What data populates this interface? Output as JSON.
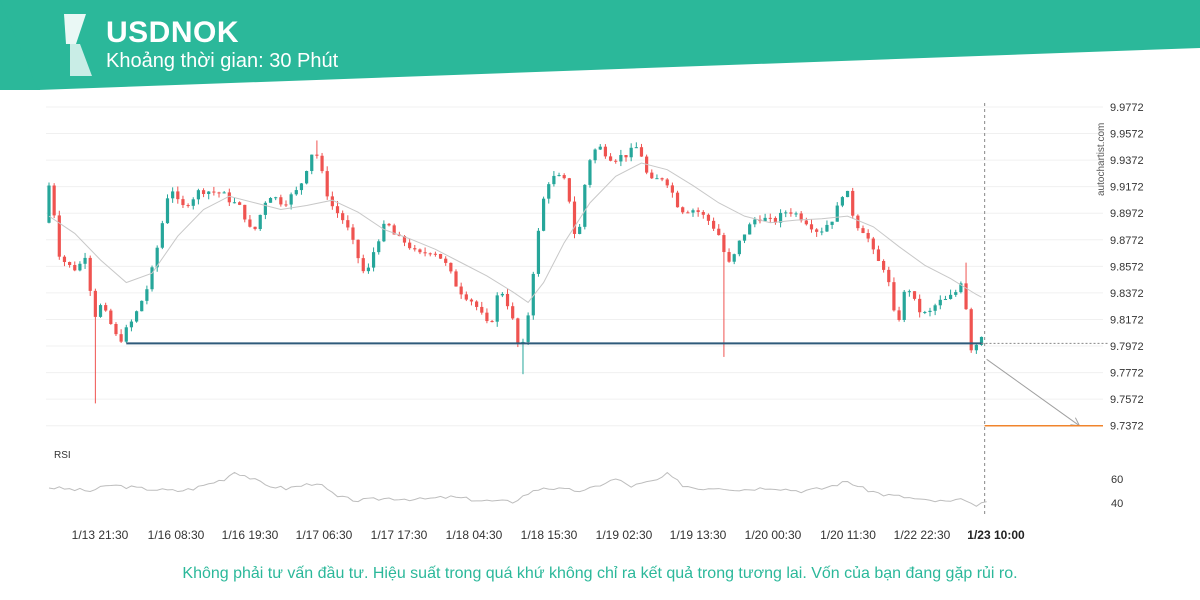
{
  "header": {
    "symbol": "USDNOK",
    "interval_label": "Khoảng thời gian: 30 Phút",
    "brand_color": "#2bb89a"
  },
  "watermark": "autochartist.com",
  "disclaimer": "Không phải tư vấn đầu tư. Hiệu suất trong quá khứ không chỉ ra kết quả trong tương lai. Vốn của bạn đang gặp rủi ro.",
  "chart_data": {
    "type": "candlestick",
    "x_tick_labels": [
      "1/13 21:30",
      "1/16 08:30",
      "1/16 19:30",
      "1/17 06:30",
      "1/17 17:30",
      "1/18 04:30",
      "1/18 15:30",
      "1/19 02:30",
      "1/19 13:30",
      "1/20 00:30",
      "1/20 11:30",
      "1/22 22:30",
      "1/23 10:00"
    ],
    "highlighted_x_label": "1/23 10:00",
    "y_ticks": [
      9.9772,
      9.9572,
      9.9372,
      9.9172,
      9.8972,
      9.8772,
      9.8572,
      9.8372,
      9.8172,
      9.7972,
      9.7772,
      9.7572,
      9.7372
    ],
    "ylim": [
      9.7302,
      9.9802
    ],
    "price_path": [
      [
        0,
        9.89
      ],
      [
        0.8,
        9.935
      ],
      [
        2,
        9.87
      ],
      [
        4,
        9.858
      ],
      [
        6,
        9.855
      ],
      [
        8,
        9.87
      ],
      [
        9,
        9.812
      ],
      [
        10,
        9.83
      ],
      [
        12,
        9.818
      ],
      [
        14,
        9.8
      ],
      [
        17,
        9.818
      ],
      [
        20,
        9.845
      ],
      [
        22,
        9.88
      ],
      [
        24,
        9.92
      ],
      [
        26,
        9.9
      ],
      [
        30,
        9.915
      ],
      [
        34,
        9.912
      ],
      [
        38,
        9.9
      ],
      [
        40,
        9.88
      ],
      [
        43,
        9.912
      ],
      [
        46,
        9.905
      ],
      [
        49,
        9.915
      ],
      [
        52,
        9.948
      ],
      [
        55,
        9.905
      ],
      [
        58,
        9.89
      ],
      [
        62,
        9.848
      ],
      [
        64,
        9.875
      ],
      [
        66,
        9.89
      ],
      [
        68,
        9.878
      ],
      [
        70,
        9.875
      ],
      [
        72,
        9.865
      ],
      [
        75,
        9.87
      ],
      [
        77,
        9.862
      ],
      [
        80,
        9.84
      ],
      [
        83,
        9.83
      ],
      [
        86,
        9.81
      ],
      [
        88,
        9.842
      ],
      [
        90,
        9.825
      ],
      [
        92,
        9.79
      ],
      [
        93,
        9.805
      ],
      [
        95,
        9.87
      ],
      [
        97,
        9.92
      ],
      [
        99,
        9.925
      ],
      [
        101,
        9.92
      ],
      [
        103,
        9.87
      ],
      [
        105,
        9.935
      ],
      [
        107,
        9.948
      ],
      [
        110,
        9.938
      ],
      [
        113,
        9.942
      ],
      [
        115,
        9.948
      ],
      [
        117,
        9.92
      ],
      [
        120,
        9.925
      ],
      [
        123,
        9.9
      ],
      [
        126,
        9.9
      ],
      [
        129,
        9.89
      ],
      [
        131,
        9.878
      ],
      [
        132,
        9.858
      ],
      [
        133,
        9.86
      ],
      [
        135,
        9.88
      ],
      [
        138,
        9.895
      ],
      [
        141,
        9.89
      ],
      [
        144,
        9.9
      ],
      [
        147,
        9.893
      ],
      [
        150,
        9.883
      ],
      [
        153,
        9.895
      ],
      [
        155,
        9.918
      ],
      [
        157,
        9.89
      ],
      [
        159,
        9.883
      ],
      [
        161,
        9.862
      ],
      [
        163,
        9.855
      ],
      [
        165,
        9.81
      ],
      [
        167,
        9.845
      ],
      [
        169,
        9.825
      ],
      [
        171,
        9.82
      ],
      [
        173,
        9.83
      ],
      [
        175,
        9.832
      ],
      [
        177,
        9.84
      ],
      [
        178,
        9.853
      ],
      [
        179,
        9.8
      ],
      [
        180,
        9.792
      ],
      [
        181,
        9.806
      ]
    ],
    "moving_average": [
      [
        0,
        9.895
      ],
      [
        5,
        9.882
      ],
      [
        10,
        9.862
      ],
      [
        15,
        9.845
      ],
      [
        20,
        9.852
      ],
      [
        25,
        9.88
      ],
      [
        30,
        9.9
      ],
      [
        35,
        9.91
      ],
      [
        40,
        9.905
      ],
      [
        45,
        9.9
      ],
      [
        50,
        9.903
      ],
      [
        55,
        9.907
      ],
      [
        60,
        9.898
      ],
      [
        65,
        9.885
      ],
      [
        70,
        9.878
      ],
      [
        75,
        9.87
      ],
      [
        80,
        9.86
      ],
      [
        85,
        9.85
      ],
      [
        90,
        9.838
      ],
      [
        93,
        9.83
      ],
      [
        96,
        9.845
      ],
      [
        100,
        9.875
      ],
      [
        105,
        9.905
      ],
      [
        110,
        9.925
      ],
      [
        115,
        9.935
      ],
      [
        120,
        9.93
      ],
      [
        125,
        9.918
      ],
      [
        130,
        9.905
      ],
      [
        135,
        9.895
      ],
      [
        140,
        9.89
      ],
      [
        145,
        9.892
      ],
      [
        150,
        9.893
      ],
      [
        155,
        9.895
      ],
      [
        160,
        9.887
      ],
      [
        165,
        9.872
      ],
      [
        170,
        9.858
      ],
      [
        175,
        9.848
      ],
      [
        180,
        9.836
      ],
      [
        181,
        9.834
      ]
    ],
    "support_level": 9.7992,
    "support_start_index": 15,
    "projection": {
      "from_index": 182,
      "from_price": 9.7872,
      "to_index": 200,
      "to_price": 9.7372
    },
    "target_level": 9.7372,
    "rsi": {
      "label": "RSI",
      "y_ticks": [
        60,
        40
      ],
      "ylim": [
        30,
        80
      ],
      "path": [
        [
          0,
          53
        ],
        [
          8,
          50
        ],
        [
          12,
          55
        ],
        [
          18,
          52
        ],
        [
          25,
          50
        ],
        [
          28,
          52
        ],
        [
          34,
          60
        ],
        [
          36,
          66
        ],
        [
          38,
          63
        ],
        [
          42,
          55
        ],
        [
          46,
          52
        ],
        [
          52,
          57
        ],
        [
          56,
          45
        ],
        [
          60,
          42
        ],
        [
          66,
          44
        ],
        [
          72,
          43
        ],
        [
          78,
          45
        ],
        [
          84,
          42
        ],
        [
          90,
          41
        ],
        [
          93,
          48
        ],
        [
          96,
          53
        ],
        [
          100,
          51
        ],
        [
          104,
          50
        ],
        [
          108,
          57
        ],
        [
          110,
          60
        ],
        [
          113,
          54
        ],
        [
          118,
          59
        ],
        [
          120,
          64
        ],
        [
          123,
          55
        ],
        [
          126,
          52
        ],
        [
          130,
          53
        ],
        [
          134,
          51
        ],
        [
          140,
          53
        ],
        [
          146,
          50
        ],
        [
          150,
          52
        ],
        [
          155,
          58
        ],
        [
          158,
          52
        ],
        [
          162,
          47
        ],
        [
          166,
          45
        ],
        [
          170,
          42
        ],
        [
          175,
          41
        ],
        [
          178,
          43
        ],
        [
          180,
          36
        ],
        [
          182,
          42
        ]
      ]
    },
    "colors": {
      "up": "#26a69a",
      "down": "#ef5350",
      "support": "#2e5a7a",
      "target": "#f0842c",
      "ma": "#c8c8c8",
      "rsi": "#bdbdbd",
      "projection": "#a0a0a0"
    }
  }
}
